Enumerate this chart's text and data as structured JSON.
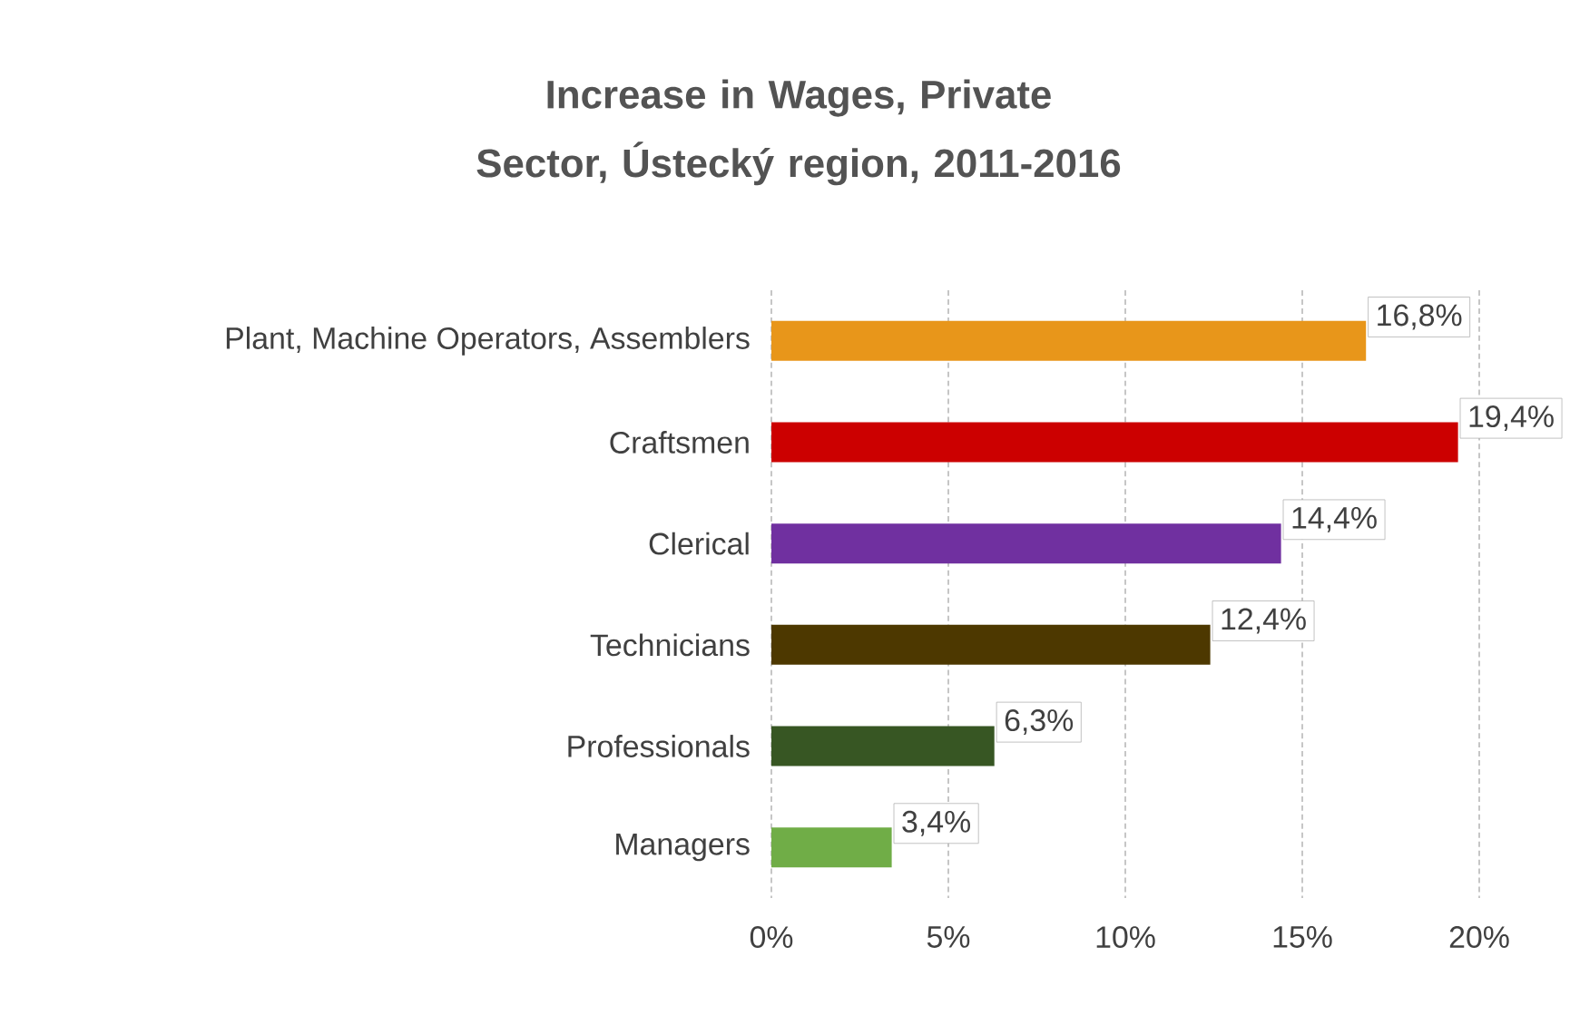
{
  "chart_data": {
    "type": "bar",
    "orientation": "horizontal",
    "title": "Increase in Wages, Private Sector, Ústecký region, 2011-2016",
    "categories": [
      "Plant, Machine Operators, Assemblers",
      "Craftsmen",
      "Clerical",
      "Technicians",
      "Professionals",
      "Managers"
    ],
    "values": [
      16.8,
      19.4,
      14.4,
      12.4,
      6.3,
      3.4
    ],
    "value_labels": [
      "16,8%",
      "19,4%",
      "14,4%",
      "12,4%",
      "6,3%",
      "3,4%"
    ],
    "colors": [
      "#e8961a",
      "#cc0000",
      "#7030a0",
      "#4d3800",
      "#375623",
      "#70ad47"
    ],
    "xlim": [
      0,
      20
    ],
    "xticks": [
      {
        "value": 0,
        "label": "0%"
      },
      {
        "value": 5,
        "label": "5%"
      },
      {
        "value": 10,
        "label": "10%"
      },
      {
        "value": 15,
        "label": "15%"
      },
      {
        "value": 20,
        "label": "20%"
      }
    ],
    "grid": "x"
  }
}
